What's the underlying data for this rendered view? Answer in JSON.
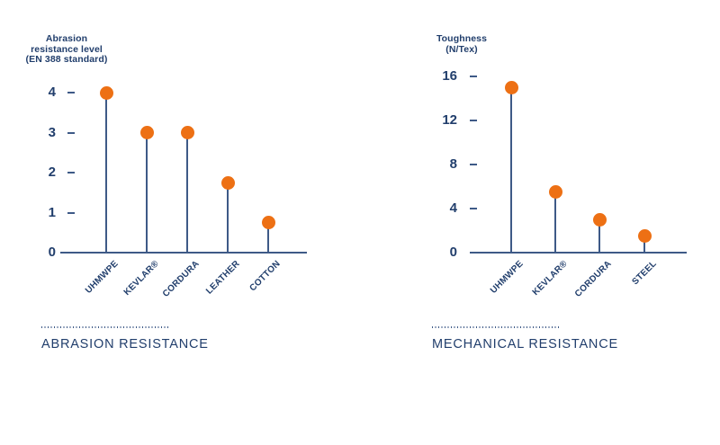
{
  "colors": {
    "navy": "#213e6c",
    "line": "#3e5a87",
    "orange": "#ed7014",
    "background": "#ffffff"
  },
  "chart_data": [
    {
      "type": "scatter",
      "variant": "lollipop-stem",
      "title": "Abrasion resistance level (EN 388 standard)",
      "title_lines": [
        "Abrasion",
        "resistance level",
        "(EN 388 standard)"
      ],
      "categories": [
        "UHMWPE",
        "KEVLAR®",
        "CORDURA",
        "LEATHER",
        "COTTON"
      ],
      "values": [
        4,
        3,
        3,
        1.75,
        0.75
      ],
      "ylim": [
        0,
        4
      ],
      "yticks": [
        0,
        1,
        2,
        3,
        4
      ],
      "xlabel": "",
      "ylabel": "Abrasion resistance level (EN 388 standard)",
      "grid": false,
      "legend": "none",
      "caption": "ABRASION RESISTANCE"
    },
    {
      "type": "scatter",
      "variant": "lollipop-stem",
      "title": "Toughness (N/Tex)",
      "title_lines": [
        "Toughness",
        "(N/Tex)"
      ],
      "categories": [
        "UHMWPE",
        "KEVLAR®",
        "CORDURA",
        "STEEL"
      ],
      "values": [
        15,
        5.5,
        3,
        1.5
      ],
      "ylim": [
        0,
        16
      ],
      "yticks": [
        0,
        4,
        8,
        12,
        16
      ],
      "xlabel": "",
      "ylabel": "Toughness (N/Tex)",
      "grid": false,
      "legend": "none",
      "caption": "MECHANICAL RESISTANCE"
    }
  ]
}
